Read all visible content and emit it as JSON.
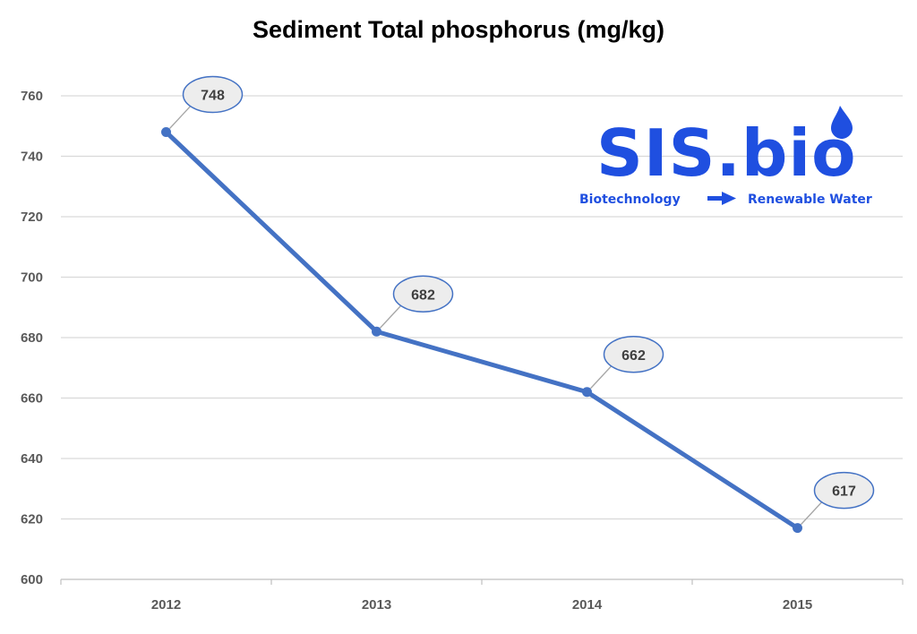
{
  "chart_data": {
    "type": "line",
    "title": "Sediment Total phosphorus (mg/kg)",
    "xlabel": "",
    "ylabel": "",
    "categories": [
      "2012",
      "2013",
      "2014",
      "2015"
    ],
    "series": [
      {
        "values": [
          748,
          682,
          662,
          617
        ],
        "color": "#4472C4"
      }
    ],
    "ylim": [
      600,
      760
    ],
    "yticks": [
      600,
      620,
      640,
      660,
      680,
      700,
      720,
      740,
      760
    ],
    "grid": true,
    "legend": "none",
    "data_labels": true
  },
  "logo": {
    "name": "SIS.bio",
    "tagline_left": "Biotechnology",
    "tagline_right": "Renewable Water",
    "color": "#1F4FE0",
    "icon": "arrow-right-icon"
  }
}
